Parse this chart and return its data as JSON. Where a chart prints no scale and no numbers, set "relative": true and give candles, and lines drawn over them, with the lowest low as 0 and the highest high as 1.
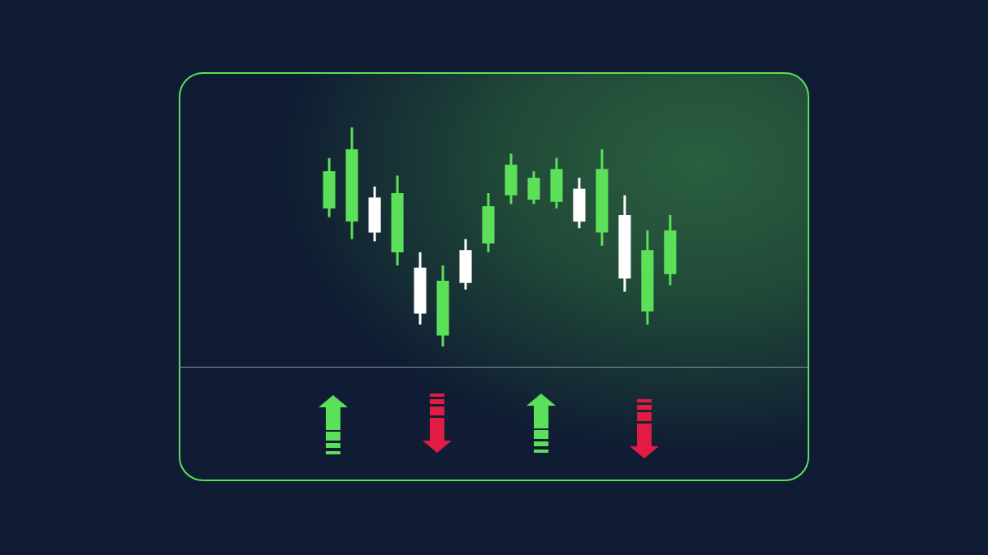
{
  "chart_data": {
    "type": "candlestick",
    "relative": true,
    "categories": [
      null,
      null,
      null,
      null,
      null,
      null,
      null,
      null,
      null,
      null,
      null,
      null,
      null,
      null,
      null,
      null
    ],
    "ohlc": [
      [
        0.63,
        0.86,
        0.59,
        0.8
      ],
      [
        0.57,
        1,
        0.49,
        0.9
      ],
      [
        0.68,
        0.73,
        0.48,
        0.52
      ],
      [
        0.43,
        0.78,
        0.37,
        0.7
      ],
      [
        0.36,
        0.43,
        0.1,
        0.15
      ],
      [
        0.05,
        0.37,
        0,
        0.3
      ],
      [
        0.44,
        0.49,
        0.26,
        0.29
      ],
      [
        0.47,
        0.7,
        0.43,
        0.64
      ],
      [
        0.69,
        0.88,
        0.65,
        0.83
      ],
      [
        0.67,
        0.8,
        0.65,
        0.77
      ],
      [
        0.66,
        0.86,
        0.63,
        0.81
      ],
      [
        0.72,
        0.77,
        0.54,
        0.57
      ],
      [
        0.52,
        0.9,
        0.46,
        0.81
      ],
      [
        0.6,
        0.69,
        0.25,
        0.31
      ],
      [
        0.16,
        0.53,
        0.1,
        0.44
      ],
      [
        0.33,
        0.6,
        0.28,
        0.53
      ]
    ],
    "colors": [
      "#5ce05a",
      "#5ce05a",
      "#ffffff",
      "#5ce05a",
      "#ffffff",
      "#5ce05a",
      "#ffffff",
      "#5ce05a",
      "#5ce05a",
      "#5ce05a",
      "#5ce05a",
      "#ffffff",
      "#5ce05a",
      "#ffffff",
      "#5ce05a",
      "#5ce05a"
    ]
  }
}
